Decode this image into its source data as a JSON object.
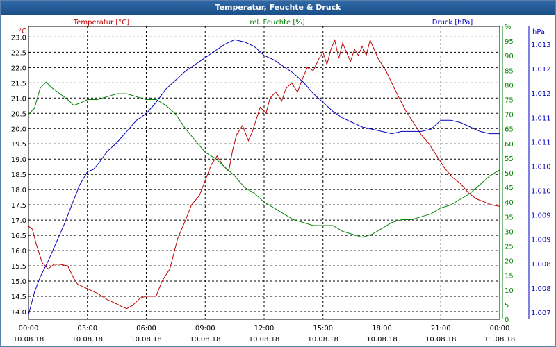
{
  "window": {
    "title": "Temperatur, Feuchte & Druck"
  },
  "chart_data": {
    "type": "line",
    "title": "Temperatur, Feuchte & Druck",
    "x_ticks": [
      {
        "time": "00:00",
        "date": "10.08.18"
      },
      {
        "time": "03:00",
        "date": "10.08.18"
      },
      {
        "time": "06:00",
        "date": "10.08.18"
      },
      {
        "time": "09:00",
        "date": "10.08.18"
      },
      {
        "time": "12:00",
        "date": "10.08.18"
      },
      {
        "time": "15:00",
        "date": "10.08.18"
      },
      {
        "time": "18:00",
        "date": "10.08.18"
      },
      {
        "time": "21:00",
        "date": "10.08.18"
      },
      {
        "time": "00:00",
        "date": "11.08.18"
      }
    ],
    "x_unit": "hours",
    "xlim": [
      0,
      24
    ],
    "axes": {
      "temperature": {
        "label": "Temperatur [°C]",
        "unit": "°C",
        "color": "#c00000",
        "ylim": [
          13.75,
          23.35
        ],
        "ticks": [
          "14.0",
          "14.5",
          "15.0",
          "15.5",
          "16.0",
          "16.5",
          "17.0",
          "17.5",
          "18.0",
          "18.5",
          "19.0",
          "19.5",
          "20.0",
          "20.5",
          "21.0",
          "21.5",
          "22.0",
          "22.5",
          "23.0"
        ]
      },
      "humidity": {
        "label": "rel. Feuchte [%]",
        "unit": "%",
        "color": "#008000",
        "ylim": [
          0,
          100
        ],
        "ticks": [
          "0",
          "5",
          "10",
          "15",
          "20",
          "25",
          "30",
          "35",
          "40",
          "45",
          "50",
          "55",
          "60",
          "65",
          "70",
          "75",
          "80",
          "85",
          "90",
          "95",
          "%"
        ]
      },
      "pressure": {
        "label": "Druck [hPa]",
        "unit": "hPa",
        "color": "#0000c0",
        "ylim": [
          1006.75,
          1013.3
        ],
        "ticks": [
          "1.007",
          "1.008",
          "1.008",
          "1.009",
          "1.009",
          "1.010",
          "1.010",
          "1.011",
          "1.011",
          "1.012",
          "1.012",
          "1.013"
        ]
      }
    },
    "series": [
      {
        "name": "Temperatur [°C]",
        "axis": "temperature",
        "color": "#c00000",
        "x": [
          0,
          0.2,
          0.4,
          0.7,
          1.0,
          1.3,
          1.6,
          2.0,
          2.3,
          2.5,
          3.0,
          3.5,
          4.0,
          4.5,
          4.8,
          5.0,
          5.3,
          5.7,
          6.0,
          6.5,
          6.8,
          7.2,
          7.6,
          8.0,
          8.3,
          8.7,
          9.0,
          9.3,
          9.6,
          9.9,
          10.2,
          10.4,
          10.6,
          10.9,
          11.2,
          11.4,
          11.6,
          11.8,
          12.1,
          12.3,
          12.6,
          12.9,
          13.1,
          13.4,
          13.7,
          14.0,
          14.2,
          14.5,
          14.8,
          15.0,
          15.2,
          15.4,
          15.6,
          15.8,
          16.0,
          16.2,
          16.4,
          16.6,
          16.8,
          17.0,
          17.2,
          17.4,
          17.6,
          17.8,
          18.0,
          18.2,
          18.5,
          18.8,
          19.2,
          19.6,
          20.0,
          20.4,
          20.8,
          21.2,
          21.6,
          22.0,
          22.4,
          22.8,
          23.2,
          23.6,
          24.0
        ],
        "values": [
          16.8,
          16.7,
          16.2,
          15.6,
          15.4,
          15.55,
          15.55,
          15.5,
          15.1,
          14.9,
          14.75,
          14.6,
          14.4,
          14.25,
          14.15,
          14.1,
          14.2,
          14.45,
          14.5,
          14.5,
          15.0,
          15.4,
          16.4,
          17.0,
          17.5,
          17.8,
          18.3,
          18.8,
          19.1,
          18.8,
          18.6,
          19.3,
          19.8,
          20.1,
          19.6,
          19.9,
          20.3,
          20.7,
          20.5,
          21.0,
          21.2,
          20.9,
          21.3,
          21.5,
          21.2,
          21.7,
          22.0,
          21.9,
          22.3,
          22.5,
          22.1,
          22.6,
          22.9,
          22.3,
          22.8,
          22.5,
          22.2,
          22.6,
          22.4,
          22.7,
          22.4,
          22.9,
          22.6,
          22.3,
          22.1,
          21.9,
          21.5,
          21.1,
          20.6,
          20.2,
          19.8,
          19.5,
          19.1,
          18.7,
          18.4,
          18.2,
          17.9,
          17.7,
          17.6,
          17.5,
          17.45
        ]
      },
      {
        "name": "rel. Feuchte [%]",
        "axis": "humidity",
        "color": "#008000",
        "x": [
          0,
          0.3,
          0.6,
          0.9,
          1.2,
          1.6,
          2.0,
          2.3,
          2.7,
          3.0,
          3.5,
          4.0,
          4.5,
          5.0,
          5.5,
          6.0,
          6.5,
          7.0,
          7.5,
          8.0,
          8.5,
          9.0,
          9.5,
          10.0,
          10.5,
          11.0,
          11.5,
          12.0,
          12.5,
          13.0,
          13.5,
          14.0,
          14.5,
          15.0,
          15.5,
          16.0,
          16.5,
          17.0,
          17.5,
          18.0,
          18.5,
          19.0,
          19.5,
          20.0,
          20.5,
          21.0,
          21.5,
          22.0,
          22.5,
          23.0,
          23.5,
          24.0
        ],
        "values": [
          70,
          72,
          79,
          81,
          79,
          77,
          75,
          73,
          74,
          75,
          75,
          76,
          77,
          77,
          76,
          75,
          75,
          73,
          70,
          65,
          61,
          57,
          55,
          52,
          49,
          45,
          43,
          40,
          38,
          36,
          34,
          33,
          32,
          32,
          32,
          30,
          29,
          28,
          29,
          31,
          33,
          34,
          34,
          35,
          36,
          38,
          39,
          41,
          43,
          46,
          49,
          51
        ]
      },
      {
        "name": "Druck [hPa]",
        "axis": "pressure",
        "color": "#0000c0",
        "x": [
          0,
          0.3,
          0.6,
          1.0,
          1.4,
          1.8,
          2.2,
          2.6,
          3.0,
          3.3,
          3.6,
          4.0,
          4.5,
          5.0,
          5.5,
          6.0,
          6.5,
          7.0,
          7.5,
          8.0,
          8.5,
          9.0,
          9.5,
          10.0,
          10.5,
          11.0,
          11.5,
          12.0,
          12.5,
          13.0,
          13.5,
          14.0,
          14.5,
          15.0,
          15.5,
          16.0,
          16.5,
          17.0,
          17.5,
          18.0,
          18.5,
          19.0,
          19.5,
          20.0,
          20.5,
          21.0,
          21.5,
          22.0,
          22.5,
          23.0,
          23.5,
          24.0
        ],
        "values": [
          1006.85,
          1007.35,
          1007.7,
          1008.05,
          1008.45,
          1008.85,
          1009.3,
          1009.75,
          1010.05,
          1010.1,
          1010.25,
          1010.5,
          1010.7,
          1010.95,
          1011.2,
          1011.35,
          1011.6,
          1011.9,
          1012.1,
          1012.3,
          1012.45,
          1012.6,
          1012.75,
          1012.9,
          1013.0,
          1012.95,
          1012.85,
          1012.65,
          1012.55,
          1012.4,
          1012.25,
          1012.05,
          1011.8,
          1011.6,
          1011.4,
          1011.25,
          1011.15,
          1011.05,
          1011.0,
          1010.95,
          1010.9,
          1010.95,
          1010.95,
          1010.95,
          1011.0,
          1011.2,
          1011.2,
          1011.15,
          1011.05,
          1010.95,
          1010.9,
          1010.9
        ]
      }
    ]
  }
}
